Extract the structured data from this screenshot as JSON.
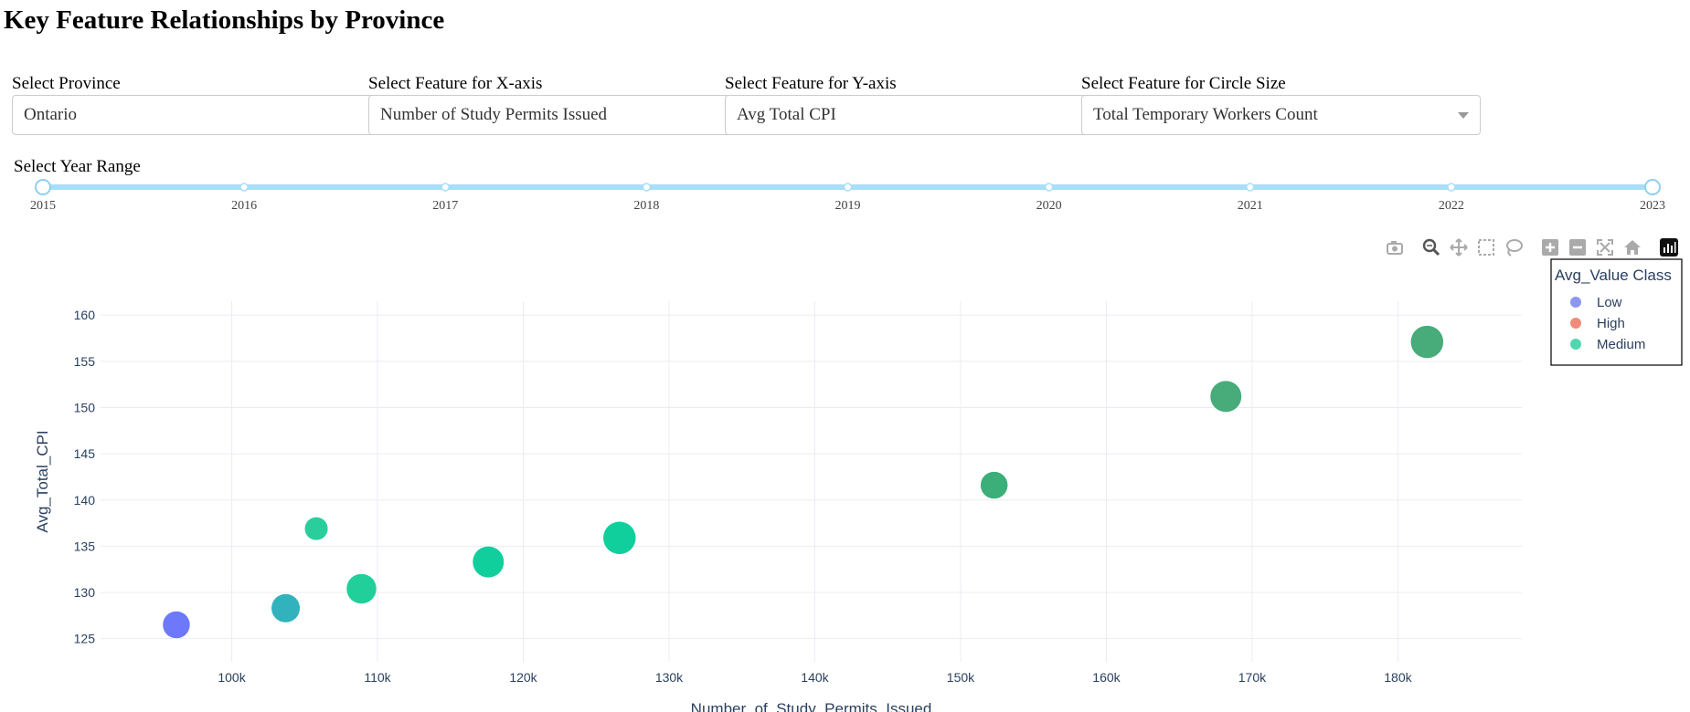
{
  "page_title": "Key Feature Relationships by Province",
  "controls": {
    "province": {
      "label": "Select Province",
      "value": "Ontario"
    },
    "x_feature": {
      "label": "Select Feature for X-axis",
      "value": "Number of Study Permits Issued"
    },
    "y_feature": {
      "label": "Select Feature for Y-axis",
      "value": "Avg Total CPI"
    },
    "size_feature": {
      "label": "Select Feature for Circle Size",
      "value": "Total Temporary Workers Count"
    },
    "year_range": {
      "label": "Select Year Range",
      "marks": [
        "2015",
        "2016",
        "2017",
        "2018",
        "2019",
        "2020",
        "2021",
        "2022",
        "2023"
      ],
      "selected": [
        "2015",
        "2023"
      ]
    }
  },
  "modebar": [
    "camera-icon",
    "zoom-icon",
    "pan-icon",
    "box-select-icon",
    "lasso-icon",
    "zoom-in-icon",
    "zoom-out-icon",
    "autoscale-icon",
    "reset-icon",
    "plotly-logo-icon"
  ],
  "chart_data": {
    "type": "scatter",
    "title": "",
    "xlabel": "Number_of_Study_Permits_Issued",
    "ylabel": "Avg_Total_CPI",
    "xlim": [
      91000,
      188500
    ],
    "ylim": [
      122.5,
      161.5
    ],
    "x_ticks": [
      100000,
      110000,
      120000,
      130000,
      140000,
      150000,
      160000,
      170000,
      180000
    ],
    "x_tick_labels": [
      "100k",
      "110k",
      "120k",
      "130k",
      "140k",
      "150k",
      "160k",
      "170k",
      "180k"
    ],
    "y_ticks": [
      125,
      130,
      135,
      140,
      145,
      150,
      155,
      160
    ],
    "grid": true,
    "legend": {
      "title": "Avg_Value Class",
      "placement": "top-right",
      "entries": [
        {
          "name": "Low",
          "color": "#8d97f0"
        },
        {
          "name": "High",
          "color": "#f08b7a"
        },
        {
          "name": "Medium",
          "color": "#4fd8ae"
        }
      ]
    },
    "points": [
      {
        "x": 96200,
        "y": 126.5,
        "size": 1.0,
        "color": "#636efa"
      },
      {
        "x": 103700,
        "y": 128.3,
        "size": 1.05,
        "color": "#22adb9"
      },
      {
        "x": 105800,
        "y": 136.9,
        "size": 0.85,
        "color": "#19cb95"
      },
      {
        "x": 108900,
        "y": 130.4,
        "size": 1.1,
        "color": "#10cc93"
      },
      {
        "x": 117600,
        "y": 133.3,
        "size": 1.15,
        "color": "#00cc96"
      },
      {
        "x": 126600,
        "y": 135.9,
        "size": 1.2,
        "color": "#00cc96"
      },
      {
        "x": 152300,
        "y": 141.6,
        "size": 1.0,
        "color": "#2ea86f"
      },
      {
        "x": 168200,
        "y": 151.2,
        "size": 1.15,
        "color": "#3aa570"
      },
      {
        "x": 182000,
        "y": 157.1,
        "size": 1.2,
        "color": "#3aa570"
      }
    ]
  }
}
